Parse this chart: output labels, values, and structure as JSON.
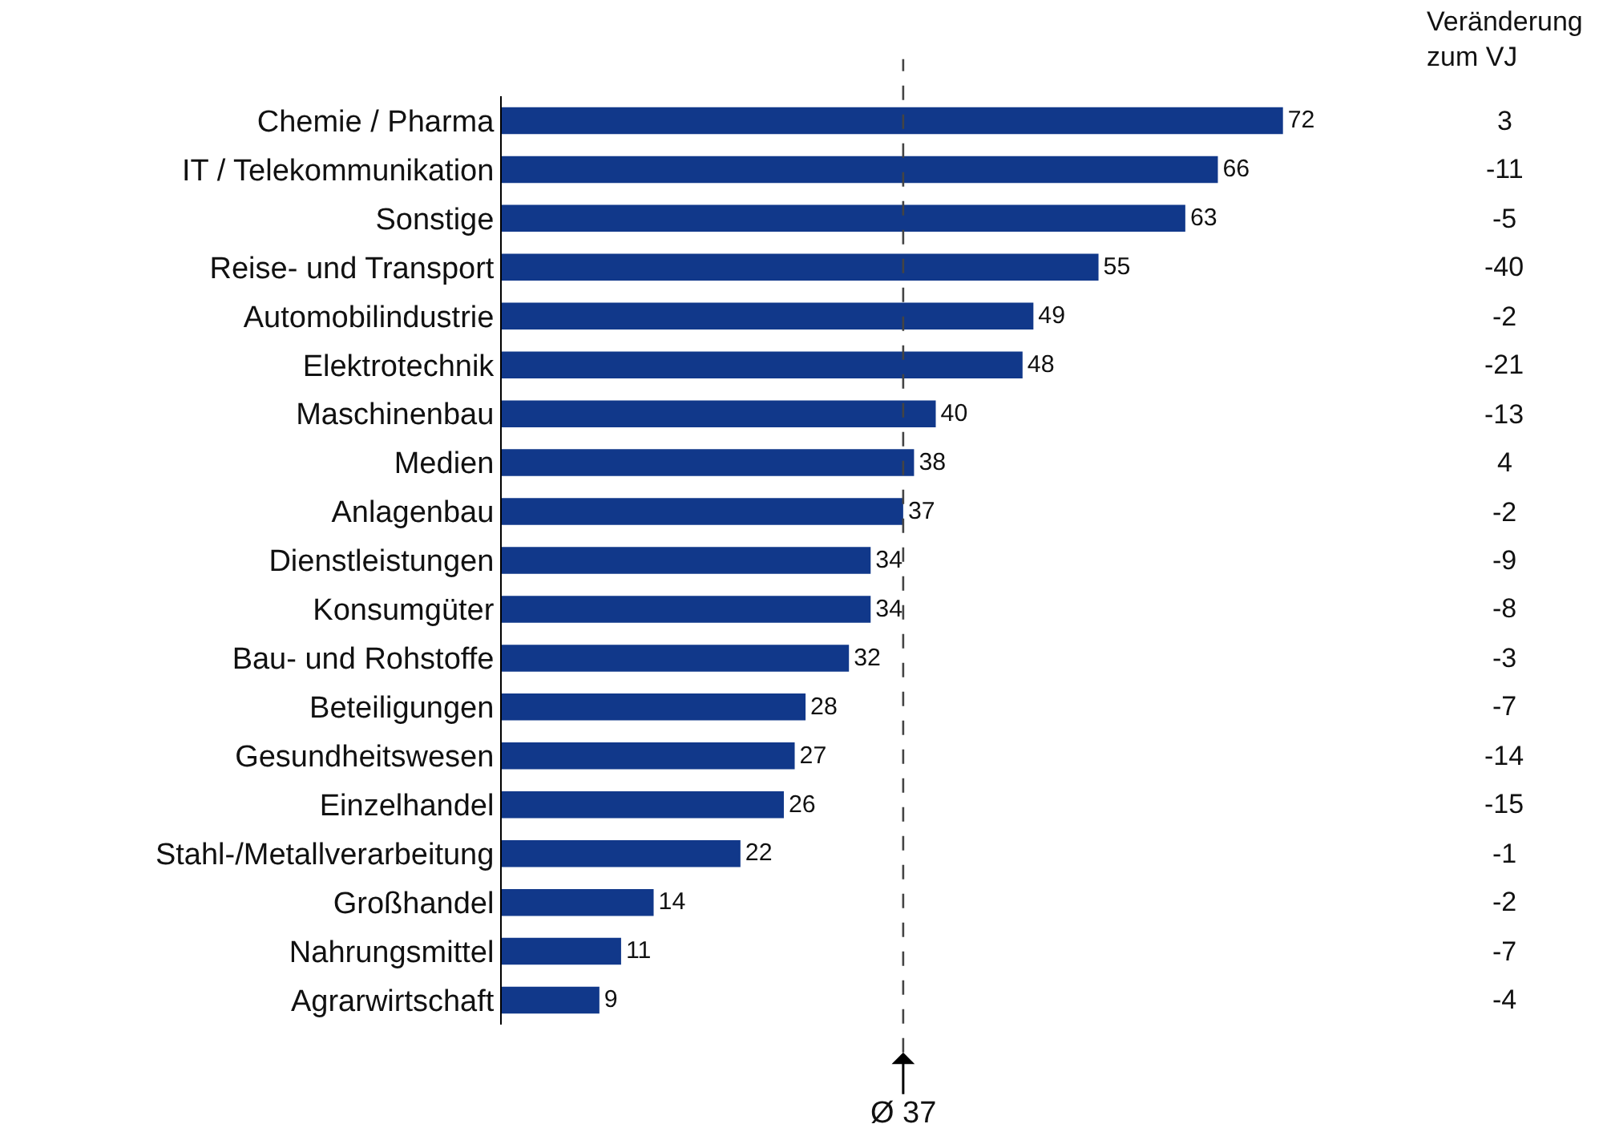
{
  "chart_data": {
    "type": "bar",
    "orientation": "horizontal",
    "categories": [
      "Chemie / Pharma",
      "IT / Telekommunikation",
      "Sonstige",
      "Reise- und Transport",
      "Automobilindustrie",
      "Elektrotechnik",
      "Maschinenbau",
      "Medien",
      "Anlagenbau",
      "Dienstleistungen",
      "Konsumgüter",
      "Bau- und Rohstoffe",
      "Beteiligungen",
      "Gesundheitswesen",
      "Einzelhandel",
      "Stahl-/Metallverarbeitung",
      "Großhandel",
      "Nahrungsmittel",
      "Agrarwirtschaft"
    ],
    "values": [
      72,
      66,
      63,
      55,
      49,
      48,
      40,
      38,
      37,
      34,
      34,
      32,
      28,
      27,
      26,
      22,
      14,
      11,
      9
    ],
    "color": "#11388a",
    "data_labels": true,
    "legend": false,
    "tick_labels": "y",
    "ref_lines": [
      {
        "axis": "x",
        "value": 37,
        "label": "Ø 37",
        "color": "#444444",
        "line_style": "dashed"
      }
    ],
    "annotations": [
      "Veränderung\nzum VJ",
      "3",
      "-11",
      "-5",
      "-40",
      "-2",
      "-21",
      "-13",
      "4",
      "-2",
      "-9",
      "-8",
      "-3",
      "-7",
      "-14",
      "-15",
      "-1",
      "-2",
      "-7",
      "-4"
    ]
  }
}
